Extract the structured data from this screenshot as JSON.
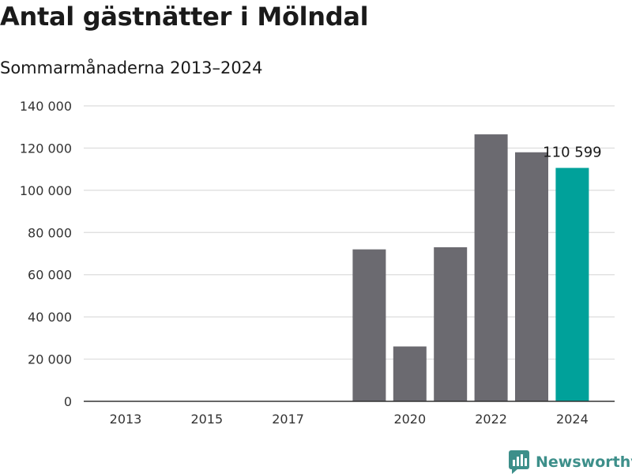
{
  "title": "Antal gästnätter i Mölndal",
  "subtitle": "Sommarmånaderna 2013–2024",
  "brand": {
    "name": "Newsworthy",
    "icon": "newsworthy-logo-icon",
    "color": "#3d8f8a"
  },
  "colors": {
    "bar": "#6b6a70",
    "highlight": "#00a19a",
    "grid": "#dcdcdc",
    "axis": "#333333"
  },
  "chart_data": {
    "type": "bar",
    "title": "Antal gästnätter i Mölndal",
    "subtitle": "Sommarmånaderna 2013–2024",
    "categories": [
      "2013",
      "2014",
      "2015",
      "2016",
      "2017",
      "2018",
      "2019",
      "2020",
      "2021",
      "2022",
      "2023",
      "2024"
    ],
    "values": [
      null,
      null,
      null,
      null,
      null,
      null,
      72000,
      26000,
      73000,
      126500,
      118000,
      110599
    ],
    "highlight_index": 11,
    "x_tick_labels": [
      "2013",
      "2015",
      "2017",
      "2020",
      "2022",
      "2024"
    ],
    "y_ticks": [
      0,
      20000,
      40000,
      60000,
      80000,
      100000,
      120000,
      140000
    ],
    "y_tick_labels": [
      "0",
      "20 000",
      "40 000",
      "60 000",
      "80 000",
      "100 000",
      "120 000",
      "140 000"
    ],
    "ylim": [
      0,
      140000
    ],
    "data_labels": [
      {
        "index": 11,
        "text": "110 599"
      }
    ],
    "grid": true,
    "xlabel": "",
    "ylabel": ""
  }
}
